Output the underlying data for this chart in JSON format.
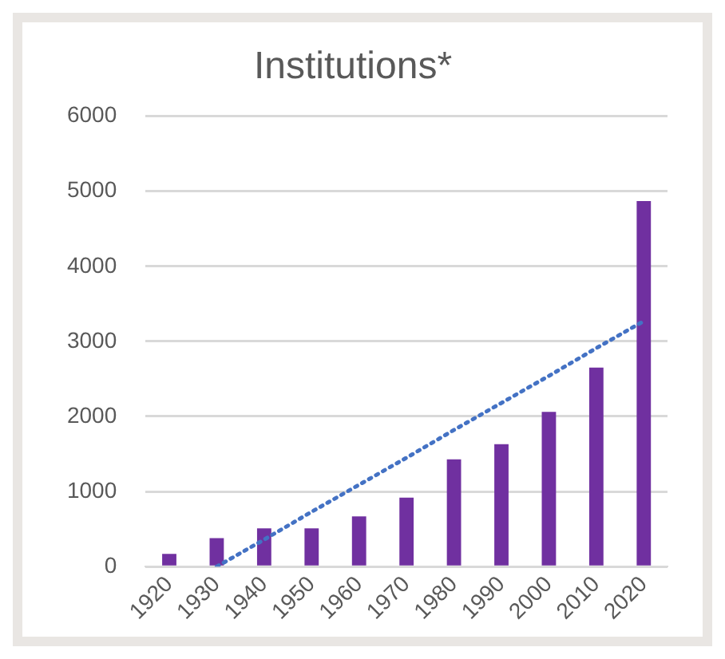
{
  "chart_data": {
    "type": "bar",
    "title": "Institutions*",
    "categories": [
      "1920",
      "1930",
      "1940",
      "1950",
      "1960",
      "1970",
      "1980",
      "1990",
      "2000",
      "2010",
      "2020"
    ],
    "series": [
      {
        "color": "#7030a0",
        "values": [
          170,
          380,
          510,
          510,
          670,
          920,
          1430,
          1630,
          2060,
          2650,
          4870
        ]
      },
      {
        "type": "line",
        "color": "#4472c4",
        "line_style": "dotted",
        "marker": "none",
        "values": [
          null,
          0,
          360,
          730,
          1090,
          1450,
          1820,
          2180,
          2540,
          2910,
          3270
        ]
      }
    ],
    "ylim": [
      0,
      6000
    ],
    "yticks": [
      0,
      1000,
      2000,
      3000,
      4000,
      5000,
      6000
    ],
    "grid": "y",
    "legend": false
  }
}
